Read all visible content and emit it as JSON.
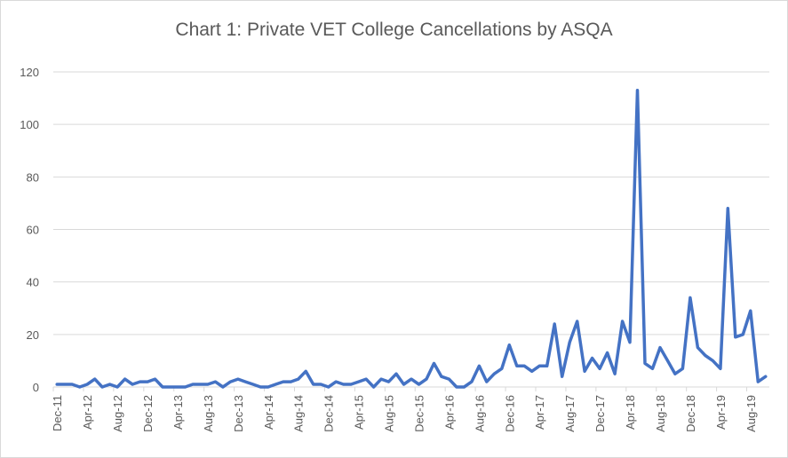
{
  "chart_data": {
    "type": "line",
    "title": "Chart 1: Private VET College Cancellations by ASQA",
    "xlabel": "",
    "ylabel": "",
    "ylim": [
      0,
      120
    ],
    "yticks": [
      0,
      20,
      40,
      60,
      80,
      100,
      120
    ],
    "grid": true,
    "legend": "none",
    "color": "#4472C4",
    "x": [
      "Dec-11",
      "Jan-12",
      "Feb-12",
      "Mar-12",
      "Apr-12",
      "May-12",
      "Jun-12",
      "Jul-12",
      "Aug-12",
      "Sep-12",
      "Oct-12",
      "Nov-12",
      "Dec-12",
      "Jan-13",
      "Feb-13",
      "Mar-13",
      "Apr-13",
      "May-13",
      "Jun-13",
      "Jul-13",
      "Aug-13",
      "Sep-13",
      "Oct-13",
      "Nov-13",
      "Dec-13",
      "Jan-14",
      "Feb-14",
      "Mar-14",
      "Apr-14",
      "May-14",
      "Jun-14",
      "Jul-14",
      "Aug-14",
      "Sep-14",
      "Oct-14",
      "Nov-14",
      "Dec-14",
      "Jan-15",
      "Feb-15",
      "Mar-15",
      "Apr-15",
      "May-15",
      "Jun-15",
      "Jul-15",
      "Aug-15",
      "Sep-15",
      "Oct-15",
      "Nov-15",
      "Dec-15",
      "Jan-16",
      "Feb-16",
      "Mar-16",
      "Apr-16",
      "May-16",
      "Jun-16",
      "Jul-16",
      "Aug-16",
      "Sep-16",
      "Oct-16",
      "Nov-16",
      "Dec-16",
      "Jan-17",
      "Feb-17",
      "Mar-17",
      "Apr-17",
      "May-17",
      "Jun-17",
      "Jul-17",
      "Aug-17",
      "Sep-17",
      "Oct-17",
      "Nov-17",
      "Dec-17",
      "Jan-18",
      "Feb-18",
      "Mar-18",
      "Apr-18",
      "May-18",
      "Jun-18",
      "Jul-18",
      "Aug-18",
      "Sep-18",
      "Oct-18",
      "Nov-18",
      "Dec-18",
      "Jan-19",
      "Feb-19",
      "Mar-19",
      "Apr-19",
      "May-19",
      "Jun-19",
      "Jul-19",
      "Aug-19",
      "Sep-19",
      "Oct-19"
    ],
    "xticks": [
      "Dec-11",
      "Apr-12",
      "Aug-12",
      "Dec-12",
      "Apr-13",
      "Aug-13",
      "Dec-13",
      "Apr-14",
      "Aug-14",
      "Dec-14",
      "Apr-15",
      "Aug-15",
      "Dec-15",
      "Apr-16",
      "Aug-16",
      "Dec-16",
      "Apr-17",
      "Aug-17",
      "Dec-17",
      "Apr-18",
      "Aug-18",
      "Dec-18",
      "Apr-19",
      "Aug-19"
    ],
    "values": [
      1,
      1,
      1,
      0,
      1,
      3,
      0,
      1,
      0,
      3,
      1,
      2,
      2,
      3,
      0,
      0,
      0,
      0,
      1,
      1,
      1,
      2,
      0,
      2,
      3,
      2,
      1,
      0,
      0,
      1,
      2,
      2,
      3,
      6,
      1,
      1,
      0,
      2,
      1,
      1,
      2,
      3,
      0,
      3,
      2,
      5,
      1,
      3,
      1,
      3,
      9,
      4,
      3,
      0,
      0,
      2,
      8,
      2,
      5,
      7,
      16,
      8,
      8,
      6,
      8,
      8,
      24,
      4,
      17,
      25,
      6,
      11,
      7,
      13,
      5,
      25,
      17,
      113,
      9,
      7,
      15,
      10,
      5,
      7,
      34,
      15,
      12,
      10,
      7,
      68,
      19,
      20,
      29,
      2,
      4
    ]
  }
}
